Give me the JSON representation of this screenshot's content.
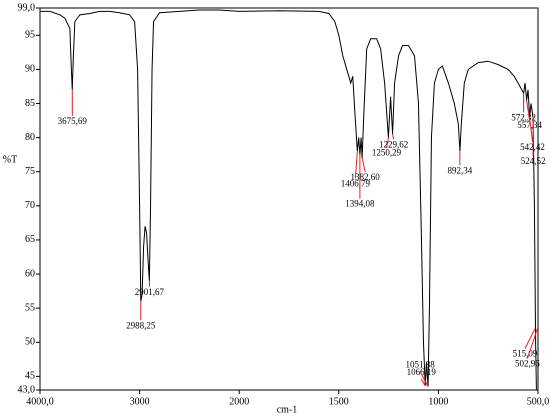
{
  "chart_data": {
    "type": "line",
    "x_label": "cm-1",
    "y_label": "%T",
    "xlim": [
      4000,
      500
    ],
    "ylim": [
      43,
      99
    ],
    "xticks": [
      {
        "value": 4000,
        "label": "4000,0"
      },
      3000,
      2000,
      1500,
      1000,
      {
        "value": 500,
        "label": "500,0"
      }
    ],
    "yticks": [
      {
        "value": 99,
        "label": "99,0"
      },
      95,
      90,
      85,
      80,
      75,
      70,
      65,
      60,
      55,
      50,
      45,
      {
        "value": 43,
        "label": "43,0"
      }
    ],
    "color": "#000000",
    "x": [
      4000,
      3900,
      3800,
      3750,
      3700,
      3685,
      3676,
      3665,
      3650,
      3600,
      3500,
      3400,
      3300,
      3200,
      3100,
      3050,
      3020,
      3000,
      2988,
      2975,
      2960,
      2945,
      2930,
      2915,
      2902,
      2890,
      2875,
      2860,
      2800,
      2600,
      2400,
      2200,
      2000,
      1800,
      1600,
      1550,
      1520,
      1500,
      1480,
      1460,
      1440,
      1430,
      1420,
      1407,
      1400,
      1394,
      1388,
      1383,
      1375,
      1360,
      1340,
      1310,
      1290,
      1270,
      1251,
      1240,
      1230,
      1220,
      1200,
      1180,
      1150,
      1120,
      1100,
      1085,
      1075,
      1066,
      1060,
      1052,
      1045,
      1035,
      1020,
      1000,
      980,
      950,
      920,
      900,
      892,
      885,
      870,
      850,
      800,
      750,
      700,
      650,
      620,
      600,
      572,
      565,
      557,
      550,
      542,
      535,
      525,
      518,
      512,
      508,
      503,
      500
    ],
    "values": [
      98.5,
      98.5,
      98,
      97.5,
      96,
      90,
      87,
      92,
      97,
      98,
      98.2,
      98.5,
      98.5,
      98.3,
      98,
      97,
      90,
      70,
      56,
      57,
      64,
      67,
      66,
      62,
      59,
      70,
      90,
      97,
      98.3,
      98.5,
      98.7,
      98.7,
      98.5,
      98.6,
      98.5,
      98.2,
      97,
      95,
      92,
      90,
      88,
      89,
      84,
      78,
      80,
      77.5,
      80,
      77,
      83,
      93,
      94.5,
      94.5,
      93,
      88,
      80,
      86,
      80.5,
      88,
      92,
      93.5,
      93.5,
      92,
      85,
      65,
      50,
      43.6,
      47,
      43.5,
      55,
      80,
      88,
      90,
      90.5,
      88,
      85,
      82,
      78,
      82,
      88,
      90,
      91,
      91.2,
      90.7,
      90,
      89,
      88,
      86.5,
      88,
      85.5,
      87,
      83,
      85,
      83,
      70,
      50,
      43,
      43,
      43
    ],
    "annotation_color": "#e02020",
    "annotations": [
      {
        "x": 3675.69,
        "y": 87,
        "label": "3675,69"
      },
      {
        "x": 2988.25,
        "y": 56,
        "label": "2988,25"
      },
      {
        "x": 2901.67,
        "y": 59,
        "label": "2901,67"
      },
      {
        "x": 1406.79,
        "y": 78,
        "label": "1406,79"
      },
      {
        "x": 1394.08,
        "y": 77.5,
        "label": "1394,08"
      },
      {
        "x": 1382.6,
        "y": 77,
        "label": "1382,60"
      },
      {
        "x": 1250.29,
        "y": 80,
        "label": "1250,29"
      },
      {
        "x": 1229.62,
        "y": 80.5,
        "label": "1229,62"
      },
      {
        "x": 1066.19,
        "y": 43.6,
        "label": "1066,19"
      },
      {
        "x": 1051.88,
        "y": 43.5,
        "label": "1051,88"
      },
      {
        "x": 892.34,
        "y": 78,
        "label": "892,34"
      },
      {
        "x": 572.32,
        "y": 86.5,
        "label": "572,32"
      },
      {
        "x": 557.34,
        "y": 85.5,
        "label": "557,34"
      },
      {
        "x": 542.42,
        "y": 83,
        "label": "542,42"
      },
      {
        "x": 524.52,
        "y": 83,
        "label": "524,52"
      },
      {
        "x": 515.09,
        "y": 52,
        "label": "515,09"
      },
      {
        "x": 502.96,
        "y": 52,
        "label": "502,96"
      }
    ]
  }
}
